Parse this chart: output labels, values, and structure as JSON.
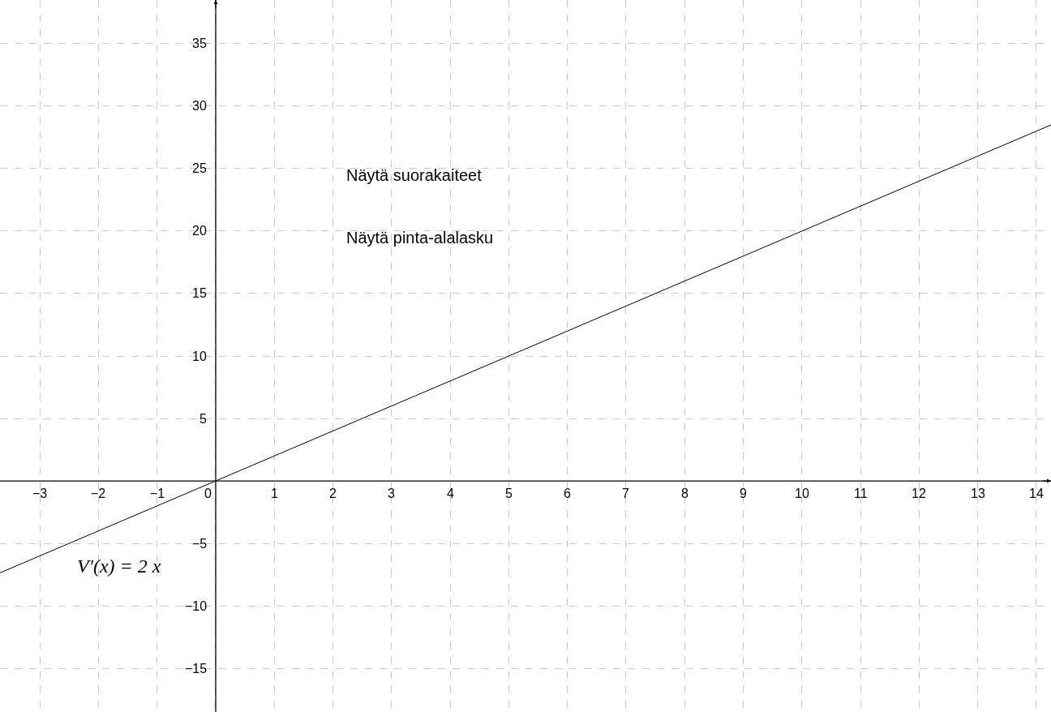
{
  "chart_data": {
    "type": "line",
    "x": [
      -3.68,
      14.25
    ],
    "series": [
      {
        "name": "V′(x) = 2 x",
        "color": "#000000",
        "values": [
          -7.36,
          28.5
        ]
      }
    ],
    "xlim": [
      -3.68,
      14.25
    ],
    "ylim": [
      -18.5,
      38.5
    ],
    "xticks": [
      {
        "value": -3,
        "label": "−3"
      },
      {
        "value": -2,
        "label": "−2"
      },
      {
        "value": -1,
        "label": "−1"
      },
      0,
      1,
      2,
      3,
      4,
      5,
      6,
      7,
      8,
      9,
      10,
      11,
      12,
      13,
      14
    ],
    "yticks": [
      {
        "value": -15,
        "label": "−15"
      },
      {
        "value": -10,
        "label": "−10"
      },
      {
        "value": -5,
        "label": "−5"
      },
      5,
      10,
      15,
      20,
      25,
      30,
      35
    ],
    "annotations": [
      "Näytä suorakaiteet",
      "Näytä pinta-alalasku"
    ],
    "grid": true,
    "legend": false
  }
}
